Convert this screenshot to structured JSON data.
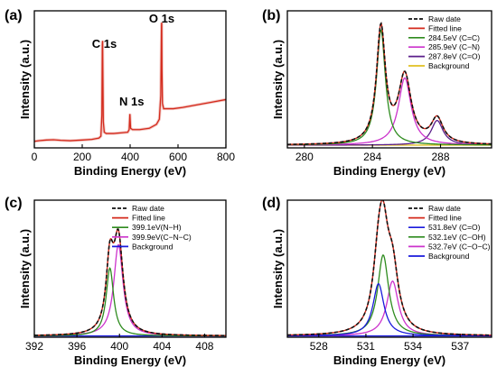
{
  "chart_data": [
    {
      "type": "line",
      "panel_label": "(a)",
      "xlabel": "Binding Energy (eV)",
      "ylabel": "Intensity (a.u.)",
      "xlim": [
        0,
        800
      ],
      "xticks": [
        0,
        200,
        400,
        600,
        800
      ],
      "yticks_shown": false,
      "legend": false,
      "annotations": [
        {
          "text": "C 1s",
          "x": 285
        },
        {
          "text": "N 1s",
          "x": 399
        },
        {
          "text": "O 1s",
          "x": 532
        }
      ],
      "series": [
        {
          "color": "#d42a1c",
          "x": [
            0,
            20,
            50,
            80,
            110,
            150,
            200,
            240,
            270,
            278,
            282,
            284,
            285,
            286,
            288,
            292,
            300,
            330,
            360,
            390,
            396,
            399,
            402,
            410,
            440,
            480,
            510,
            522,
            528,
            531,
            532,
            533,
            535,
            540,
            555,
            580,
            620,
            680,
            740,
            800
          ],
          "y": [
            0.05,
            0.055,
            0.06,
            0.062,
            0.058,
            0.055,
            0.06,
            0.065,
            0.075,
            0.09,
            0.25,
            0.79,
            0.82,
            0.6,
            0.2,
            0.12,
            0.11,
            0.11,
            0.115,
            0.12,
            0.14,
            0.26,
            0.15,
            0.14,
            0.14,
            0.15,
            0.18,
            0.22,
            0.4,
            0.94,
            0.96,
            0.6,
            0.34,
            0.3,
            0.3,
            0.3,
            0.31,
            0.33,
            0.35,
            0.37
          ]
        }
      ]
    },
    {
      "type": "line",
      "panel_label": "(b)",
      "xlabel": "Binding Energy (eV)",
      "ylabel": "Intensity (a.u.)",
      "xlim": [
        279,
        291
      ],
      "xticks": [
        280,
        284,
        288
      ],
      "yticks_shown": false,
      "legend": "top-right",
      "series": [
        {
          "name": "Raw date",
          "color": "#111111",
          "dashed": true,
          "peaks": [
            [
              284.5,
              0.84,
              0.63
            ],
            [
              285.9,
              0.49,
              0.9
            ],
            [
              287.8,
              0.18,
              0.85
            ]
          ],
          "baseline": 0.02
        },
        {
          "name": "Fitted line",
          "color": "#d42a1c",
          "peaks": [
            [
              284.5,
              0.84,
              0.63
            ],
            [
              285.9,
              0.49,
              0.9
            ],
            [
              287.8,
              0.18,
              0.85
            ]
          ],
          "baseline": 0.02
        },
        {
          "name": "284.5eV (C=C)",
          "color": "#2e8b1e",
          "peaks": [
            [
              284.5,
              0.84,
              0.63
            ]
          ],
          "baseline": 0.02
        },
        {
          "name": "285.9eV (C−N)",
          "color": "#cc33cc",
          "peaks": [
            [
              285.9,
              0.49,
              0.9
            ]
          ],
          "baseline": 0.02
        },
        {
          "name": "287.8eV (C=O)",
          "color": "#5a1e8a",
          "peaks": [
            [
              287.8,
              0.18,
              0.85
            ]
          ],
          "baseline": 0.02
        },
        {
          "name": "Background",
          "color": "#e0c020",
          "peaks": [],
          "baseline": 0.02
        }
      ]
    },
    {
      "type": "line",
      "panel_label": "(c)",
      "xlabel": "Binding Energy (eV)",
      "ylabel": "Intensity (a.u.)",
      "xlim": [
        392,
        410
      ],
      "xticks": [
        392,
        396,
        400,
        404,
        408
      ],
      "yticks_shown": false,
      "legend": "top-right",
      "series": [
        {
          "name": "Raw date",
          "color": "#111111",
          "dashed": true,
          "peaks": [
            [
              399.1,
              0.52,
              0.85
            ],
            [
              399.9,
              0.7,
              1.05
            ]
          ],
          "baseline": 0.01
        },
        {
          "name": "Fitted line",
          "color": "#d42a1c",
          "peaks": [
            [
              399.1,
              0.52,
              0.85
            ],
            [
              399.9,
              0.7,
              1.05
            ]
          ],
          "baseline": 0.01
        },
        {
          "name": "399.1eV(N−H)",
          "color": "#2e8b1e",
          "peaks": [
            [
              399.1,
              0.52,
              0.85
            ]
          ],
          "baseline": 0.01
        },
        {
          "name": "399.9eV(C−N−C)",
          "color": "#cc33cc",
          "peaks": [
            [
              399.9,
              0.7,
              1.05
            ]
          ],
          "baseline": 0.01
        },
        {
          "name": "Background",
          "color": "#1a1adc",
          "peaks": [],
          "baseline": 0.01
        }
      ]
    },
    {
      "type": "line",
      "panel_label": "(d)",
      "xlabel": "Binding Energy (eV)",
      "ylabel": "Intensity (a.u.)",
      "xlim": [
        526,
        539
      ],
      "xticks": [
        528,
        531,
        534,
        537
      ],
      "yticks_shown": false,
      "legend": "top-right",
      "series": [
        {
          "name": "Raw date",
          "color": "#111111",
          "dashed": true,
          "peaks": [
            [
              531.8,
              0.4,
              0.85
            ],
            [
              532.1,
              0.62,
              0.85
            ],
            [
              532.7,
              0.42,
              0.9
            ]
          ],
          "baseline": 0.01
        },
        {
          "name": "Fitted line",
          "color": "#d42a1c",
          "peaks": [
            [
              531.8,
              0.4,
              0.85
            ],
            [
              532.1,
              0.62,
              0.85
            ],
            [
              532.7,
              0.42,
              0.9
            ]
          ],
          "baseline": 0.01
        },
        {
          "name": "531.8eV (C=O)",
          "color": "#1a1adc",
          "peaks": [
            [
              531.8,
              0.4,
              0.85
            ]
          ],
          "baseline": 0.01
        },
        {
          "name": "532.1eV (C−OH)",
          "color": "#2e8b1e",
          "peaks": [
            [
              532.1,
              0.62,
              0.85
            ]
          ],
          "baseline": 0.01
        },
        {
          "name": "532.7eV (C−O−C)",
          "color": "#cc33cc",
          "peaks": [
            [
              532.7,
              0.42,
              0.9
            ]
          ],
          "baseline": 0.01
        },
        {
          "name": "Background",
          "color": "#1a1adc",
          "peaks": [],
          "baseline": 0.01
        }
      ]
    }
  ]
}
